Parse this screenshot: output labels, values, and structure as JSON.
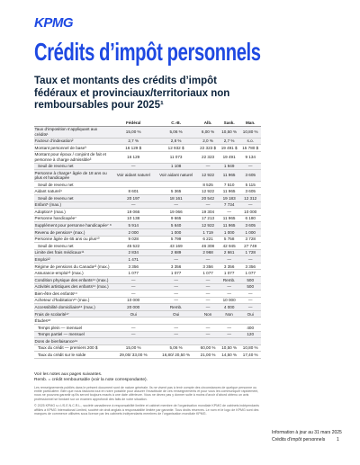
{
  "header": {
    "logo": "KPMG",
    "title": "Crédits d’impôt personnels",
    "subtitle": "Taux et montants des crédits d’impôt fédéraux et provinciaux/territoriaux non remboursables pour 2025¹"
  },
  "table": {
    "columns": [
      "",
      "Fédéral",
      "C.-B.",
      "Alb.",
      "Sask.",
      "Man."
    ],
    "rows": [
      {
        "label": "Taux d’imposition s’appliquant aux crédits¹",
        "values": [
          "15,00 %",
          "5,06 %",
          "6,00 %",
          "10,50 %",
          "10,80 %"
        ]
      },
      {
        "label": "Facteur d’indexation²",
        "values": [
          "2,7 %",
          "2,8 %",
          "2,0 %",
          "2,7 %",
          "s.o."
        ]
      },
      {
        "label": "Montant personnel de base³",
        "values": [
          "16 129 $",
          "12 932 $",
          "22 323 $",
          "19 491 $",
          "15 780 $"
        ]
      },
      {
        "label": "Montant pour époux / conjoint de fait et personne à charge admissible³",
        "values": [
          "16 129",
          "11 073",
          "22 323",
          "19 491",
          "9 134"
        ],
        "sub_rows": [
          {
            "label": "Seuil de revenu net",
            "values": [
              "—",
              "1 108",
              "—",
              "1 949",
              "—"
            ]
          }
        ]
      },
      {
        "label": "Personne à charge⁴ âgée de 18 ans ou plus et handicapée",
        "values": [
          "Voir aidant naturel",
          "Voir aidant naturel",
          "12 922",
          "11 965",
          "3 605"
        ],
        "sub_rows": [
          {
            "label": "Seuil de revenu net",
            "values": [
              "",
              "",
              "8 525",
              "7 510",
              "5 115"
            ]
          }
        ]
      },
      {
        "label": "Aidant naturel⁴",
        "values": [
          "8 601",
          "5 365",
          "12 922",
          "11 965",
          "3 605"
        ],
        "sub_rows": [
          {
            "label": "Seuil de revenu net",
            "values": [
              "20 197",
              "18 161",
              "20 542",
              "19 183",
              "12 312"
            ]
          }
        ]
      },
      {
        "label": "Enfant⁵ (max.)",
        "values": [
          "—",
          "—",
          "—",
          "7 734",
          "—"
        ]
      },
      {
        "label": "Adoption⁶ (max.)",
        "values": [
          "19 066",
          "19 066",
          "19 304",
          "—",
          "10 000"
        ]
      },
      {
        "label": "Personne handicapée⁷",
        "values": [
          "10 138",
          "9 665",
          "17 213",
          "11 965",
          "6 180"
        ]
      },
      {
        "label": "Supplément pour personne handicapée⁷ ⁸",
        "values": [
          "5 914",
          "5 640",
          "12 922",
          "11 965",
          "3 605"
        ]
      },
      {
        "label": "Revenu de pension⁹ (max.)",
        "values": [
          "2 000",
          "1 000",
          "1 719",
          "1 000",
          "1 000"
        ]
      },
      {
        "label": "Personne âgée de 65 ans ou plus¹⁰",
        "values": [
          "9 028",
          "5 799",
          "6 221",
          "5 758",
          "3 728"
        ],
        "sub_rows": [
          {
            "label": "Seuil de revenu net",
            "values": [
              "45 522",
              "43 169",
              "46 308",
              "42 945",
              "27 749"
            ]
          }
        ]
      },
      {
        "label": "Limite des frais médicaux¹¹",
        "values": [
          "2 834",
          "2 689",
          "2 968",
          "2 661",
          "1 728"
        ]
      },
      {
        "label": "Emploi¹²",
        "values": [
          "1 471",
          "—",
          "—",
          "—",
          "—"
        ]
      },
      {
        "label": "Régime de pensions du Canada¹³ (max.)",
        "values": [
          "3 356",
          "3 356",
          "3 356",
          "3 356",
          "3 356"
        ]
      },
      {
        "label": "Assurance-emploi¹³ (max.)",
        "values": [
          "1 077",
          "1 077",
          "1 077",
          "1 077",
          "1 077"
        ]
      },
      {
        "label": "Condition physique des enfants¹⁴ (max.)",
        "values": [
          "—",
          "—",
          "—",
          "Remb.",
          "500"
        ]
      },
      {
        "label": "Activités artistiques des enfants¹⁴ (max.)",
        "values": [
          "—",
          "—",
          "—",
          "—",
          "500"
        ]
      },
      {
        "label": "Bien-être des enfants¹⁴",
        "values": [
          "—",
          "—",
          "—",
          "—",
          "—"
        ]
      },
      {
        "label": "Acheteur d’habitation¹⁵ (max.)",
        "values": [
          "10 000",
          "—",
          "—",
          "10 000",
          "—"
        ]
      },
      {
        "label": "Accessibilité domiciliaire¹⁶ (max.)",
        "values": [
          "20 000",
          "Remb.",
          "—",
          "4 000",
          "—"
        ]
      },
      {
        "label": "Frais de scolarité¹⁷",
        "values": [
          "Oui",
          "Oui",
          "Non",
          "Non",
          "Oui"
        ]
      },
      {
        "label": "Études¹⁸",
        "sub_rows": [
          {
            "label": "Temps plein — mensuel",
            "values": [
              "—",
              "—",
              "—",
              "—",
              "400"
            ]
          },
          {
            "label": "Temps partiel — mensuel",
            "values": [
              "—",
              "—",
              "—",
              "—",
              "120"
            ]
          }
        ]
      },
      {
        "label": "Dons de bienfaisance¹⁹",
        "sub_rows": [
          {
            "label": "Taux du crédit — premiers 200 $",
            "values": [
              "15,00 %",
              "5,06 %",
              "60,00 %",
              "10,50 %",
              "10,80 %"
            ]
          },
          {
            "label": "Taux du crédit sur le solde",
            "values": [
              "29,00/ 33,00 %",
              "16,80/ 20,50 %",
              "21,00 %",
              "14,50 %",
              "17,40 %"
            ]
          }
        ]
      }
    ]
  },
  "notes": {
    "see": "Voir les notes aux pages suivantes.",
    "remb": "Remb. = crédit remboursable (voir la note correspondante).",
    "disclaimer": "Les renseignements publiés dans le présent document sont de nature générale. Ils ne visent pas à tenir compte des circonstances de quelque personne ou entité particulière. Bien que nous fassions tout en notre possible pour assurer l’exactitude de ces renseignements et pour vous les communiquer rapidement, nous ne pouvons garantir qu’ils seront toujours exacts à une date ultérieure. Vous ne devez pas y donner suite à moins d’avoir d’abord obtenu un avis professionnel se fondant sur un examen approfondi des faits de votre situation.",
    "copyright": "© 2025 KPMG s.r.l./S.E.N.C.R.L., société canadienne à responsabilité limitée et cabinet membre de l’organisation mondiale KPMG de cabinets indépendants affiliés à KPMG International Limited, société de droit anglais à responsabilité limitée par garantie. Tous droits réservés. Le nom et le logo de KPMG sont des marques de commerce utilisées sous licence par les cabinets indépendants membres de l’organisation mondiale KPMG."
  },
  "footer": {
    "updated": "Information à jour au 31 mars 2025",
    "doc": "Crédits d’impôt personnels",
    "page": "1"
  }
}
